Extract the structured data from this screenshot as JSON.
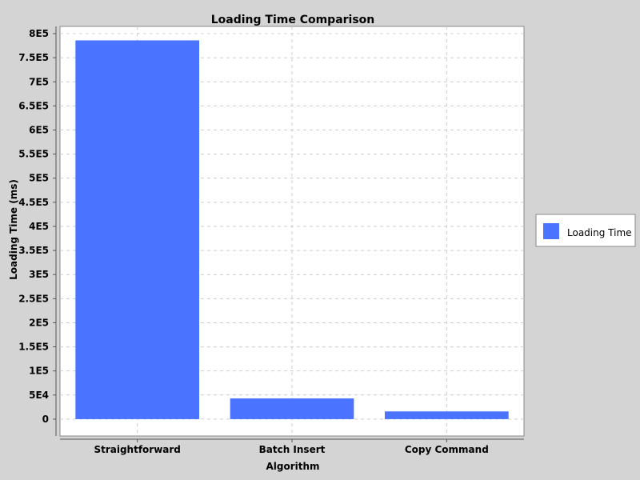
{
  "chart_data": {
    "type": "bar",
    "title": "Loading Time Comparison",
    "xlabel": "Algorithm",
    "ylabel": "Loading Time (ms)",
    "categories": [
      "Straightforward",
      "Batch Insert",
      "Copy Command"
    ],
    "series": [
      {
        "name": "Loading Time",
        "values": [
          786000,
          43000,
          16000
        ],
        "color": "#4a73ff"
      }
    ],
    "ylim": [
      -35000,
      815000
    ],
    "yticks": [
      {
        "value": 0,
        "label": "0"
      },
      {
        "value": 50000,
        "label": "5E4"
      },
      {
        "value": 100000,
        "label": "1E5"
      },
      {
        "value": 150000,
        "label": "1.5E5"
      },
      {
        "value": 200000,
        "label": "2E5"
      },
      {
        "value": 250000,
        "label": "2.5E5"
      },
      {
        "value": 300000,
        "label": "3E5"
      },
      {
        "value": 350000,
        "label": "3.5E5"
      },
      {
        "value": 400000,
        "label": "4E5"
      },
      {
        "value": 450000,
        "label": "4.5E5"
      },
      {
        "value": 500000,
        "label": "5E5"
      },
      {
        "value": 550000,
        "label": "5.5E5"
      },
      {
        "value": 600000,
        "label": "6E5"
      },
      {
        "value": 650000,
        "label": "6.5E5"
      },
      {
        "value": 700000,
        "label": "7E5"
      },
      {
        "value": 750000,
        "label": "7.5E5"
      },
      {
        "value": 800000,
        "label": "8E5"
      }
    ],
    "grid": true,
    "legend_position": "right"
  }
}
